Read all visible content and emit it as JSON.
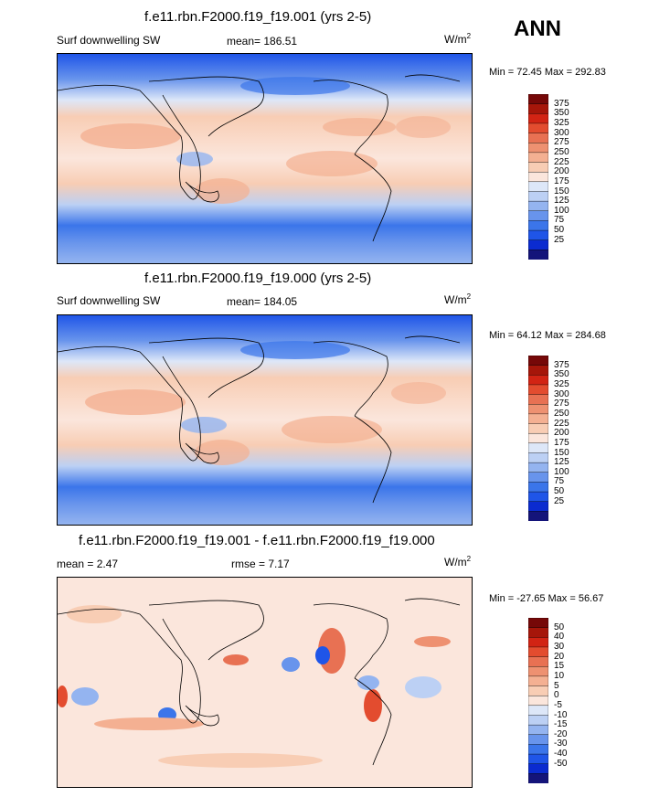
{
  "season": "ANN",
  "colors": {
    "abs": [
      "#14147a",
      "#0b2bd0",
      "#1f55e8",
      "#3b75ea",
      "#6894ec",
      "#94b4f0",
      "#bcd0f4",
      "#dde7f8",
      "#fbe6dc",
      "#f8cdb4",
      "#f4b092",
      "#ee9171",
      "#e87153",
      "#e34c2f",
      "#d22414",
      "#a6160a",
      "#760808"
    ],
    "diff": [
      "#14147a",
      "#0b2bd0",
      "#1f55e8",
      "#3b75ea",
      "#6894ec",
      "#94b4f0",
      "#bcd0f4",
      "#dde7f8",
      "#fbe6dc",
      "#f8cdb4",
      "#f4b092",
      "#ee9171",
      "#e87153",
      "#e34c2f",
      "#d22414",
      "#a6160a",
      "#760808"
    ]
  },
  "panels": [
    {
      "title": "f.e11.rbn.F2000.f19_f19.001 (yrs 2-5)",
      "variable": "Surf downwelling SW",
      "mean": "mean= 186.51",
      "units_base": "W/m",
      "units_exp": "2",
      "minmax": "Min =  72.45 Max = 292.83",
      "levels": [
        "375",
        "350",
        "325",
        "300",
        "275",
        "250",
        "225",
        "200",
        "175",
        "150",
        "125",
        "100",
        "75",
        "50",
        "25"
      ],
      "kind": "abs"
    },
    {
      "title": "f.e11.rbn.F2000.f19_f19.000 (yrs 2-5)",
      "variable": "Surf downwelling SW",
      "mean": "mean= 184.05",
      "units_base": "W/m",
      "units_exp": "2",
      "minmax": "Min =  64.12 Max = 284.68",
      "levels": [
        "375",
        "350",
        "325",
        "300",
        "275",
        "250",
        "225",
        "200",
        "175",
        "150",
        "125",
        "100",
        "75",
        "50",
        "25"
      ],
      "kind": "abs"
    },
    {
      "title": "f.e11.rbn.F2000.f19_f19.001 - f.e11.rbn.F2000.f19_f19.000",
      "variable": "mean =   2.47",
      "mean": "rmse =   7.17",
      "units_base": "W/m",
      "units_exp": "2",
      "minmax": "Min = -27.65 Max =  56.67",
      "levels": [
        "50",
        "40",
        "30",
        "20",
        "15",
        "10",
        "5",
        "0",
        "-5",
        "-10",
        "-15",
        "-20",
        "-30",
        "-40",
        "-50"
      ],
      "kind": "diff"
    }
  ]
}
